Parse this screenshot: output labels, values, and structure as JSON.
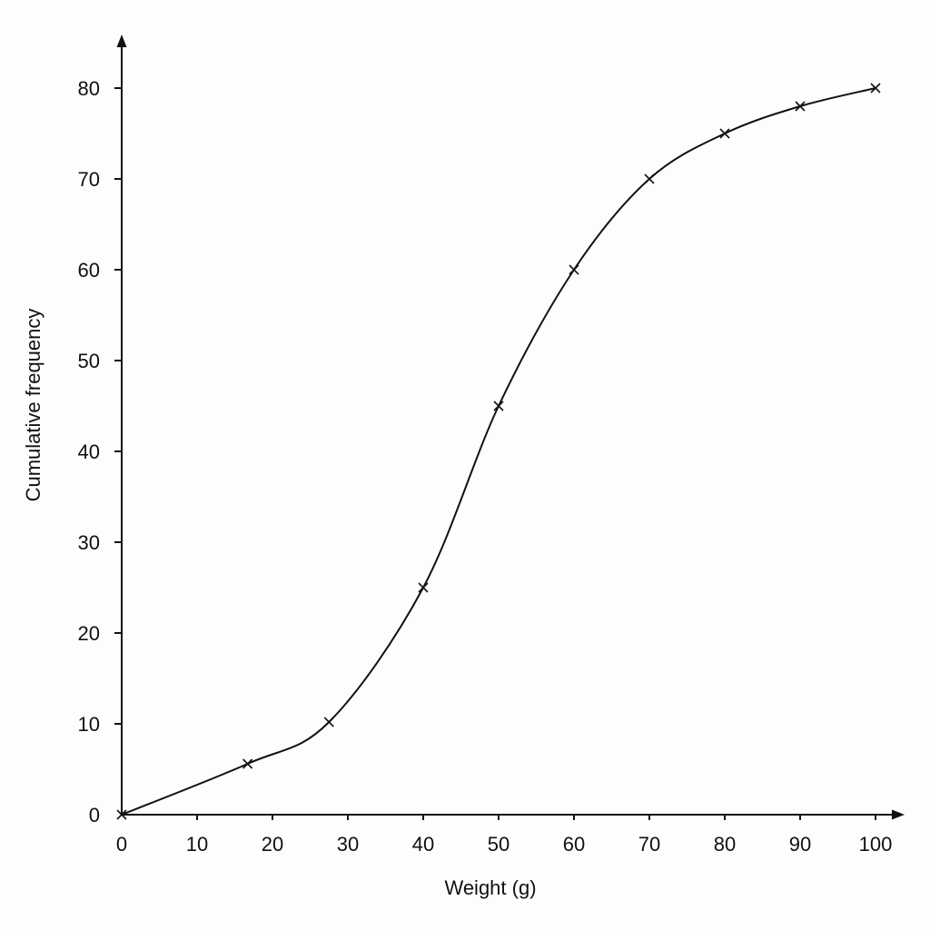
{
  "chart_data": {
    "type": "line",
    "title": "",
    "xlabel": "Weight (g)",
    "ylabel": "Cumulative frequency",
    "xlim": [
      0,
      100
    ],
    "ylim": [
      0,
      80
    ],
    "xticks": [
      0,
      10,
      20,
      30,
      40,
      50,
      60,
      70,
      80,
      90,
      100
    ],
    "yticks": [
      0,
      10,
      20,
      30,
      40,
      50,
      60,
      70,
      80
    ],
    "grid": false,
    "marker": "x",
    "series": [
      {
        "x": [
          0,
          16.7,
          27.5,
          40,
          50,
          60,
          70,
          80,
          90,
          100
        ],
        "y": [
          0,
          5.6,
          10.2,
          25,
          45,
          60,
          70,
          75,
          78,
          80
        ]
      }
    ]
  },
  "colors": {
    "background": "#fdfdfd",
    "ink": "#111111"
  }
}
